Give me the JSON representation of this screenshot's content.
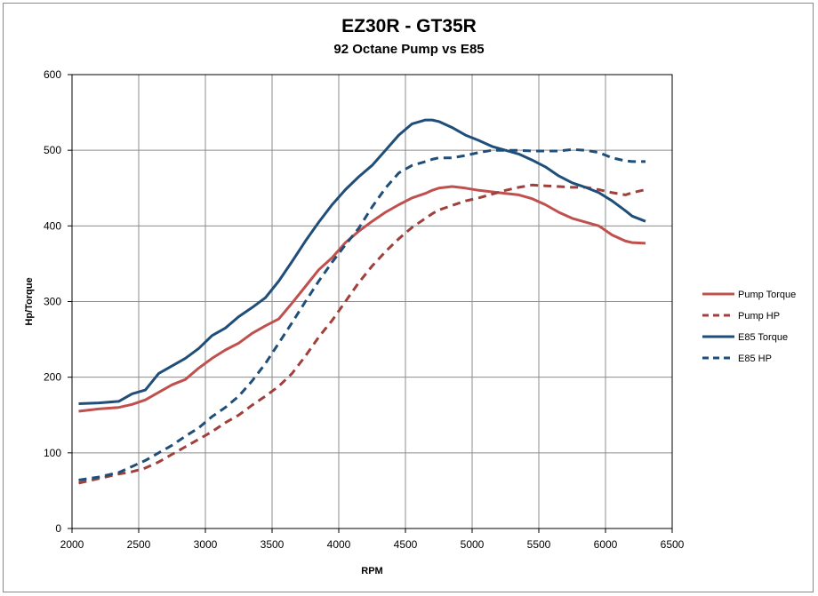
{
  "chart_data": {
    "type": "line",
    "title": "EZ30R - GT35R",
    "subtitle": "92 Octane Pump vs E85",
    "xlabel": "RPM",
    "ylabel": "Hp/Torque",
    "xlim": [
      2000,
      6500
    ],
    "ylim": [
      0,
      600
    ],
    "x_ticks": [
      2000,
      2500,
      3000,
      3500,
      4000,
      4500,
      5000,
      5500,
      6000,
      6500
    ],
    "y_ticks": [
      0,
      100,
      200,
      300,
      400,
      500,
      600
    ],
    "grid": true,
    "legend_position": "right",
    "x": [
      2050,
      2200,
      2350,
      2450,
      2550,
      2650,
      2750,
      2850,
      2950,
      3050,
      3150,
      3250,
      3350,
      3450,
      3550,
      3650,
      3750,
      3850,
      3950,
      4050,
      4150,
      4250,
      4350,
      4450,
      4550,
      4650,
      4700,
      4750,
      4850,
      4950,
      5050,
      5150,
      5250,
      5350,
      5450,
      5550,
      5650,
      5750,
      5850,
      5950,
      6050,
      6150,
      6200,
      6300
    ],
    "series": [
      {
        "name": "Pump Torque",
        "color": "#c0504d",
        "dash": false,
        "values": [
          155,
          158,
          160,
          164,
          170,
          180,
          190,
          197,
          212,
          225,
          236,
          245,
          258,
          268,
          277,
          298,
          320,
          342,
          358,
          378,
          393,
          406,
          418,
          428,
          437,
          443,
          447,
          450,
          452,
          450,
          447,
          445,
          443,
          441,
          436,
          428,
          418,
          410,
          405,
          400,
          388,
          380,
          378,
          377
        ]
      },
      {
        "name": "Pump HP",
        "color": "#a0403d",
        "dash": true,
        "values": [
          60,
          66,
          72,
          75,
          80,
          88,
          98,
          108,
          118,
          128,
          140,
          150,
          163,
          175,
          188,
          205,
          228,
          253,
          275,
          300,
          325,
          347,
          366,
          383,
          398,
          410,
          416,
          421,
          427,
          433,
          437,
          442,
          447,
          451,
          454,
          453,
          452,
          451,
          451,
          448,
          444,
          441,
          444,
          448
        ]
      },
      {
        "name": "E85 Torque",
        "color": "#1f4e79",
        "dash": false,
        "values": [
          165,
          166,
          168,
          178,
          183,
          205,
          215,
          225,
          238,
          255,
          265,
          280,
          292,
          305,
          327,
          353,
          380,
          405,
          428,
          448,
          465,
          480,
          500,
          520,
          535,
          540,
          540,
          538,
          530,
          520,
          513,
          505,
          500,
          495,
          487,
          478,
          466,
          457,
          451,
          444,
          433,
          420,
          413,
          406
        ]
      },
      {
        "name": "E85 HP",
        "color": "#1f4e79",
        "dash": true,
        "values": [
          64,
          68,
          74,
          82,
          90,
          100,
          110,
          122,
          133,
          148,
          160,
          175,
          195,
          218,
          245,
          272,
          300,
          327,
          352,
          375,
          397,
          425,
          450,
          470,
          480,
          485,
          488,
          490,
          490,
          493,
          497,
          500,
          500,
          500,
          499,
          499,
          499,
          501,
          500,
          497,
          490,
          486,
          485,
          485
        ]
      }
    ]
  }
}
